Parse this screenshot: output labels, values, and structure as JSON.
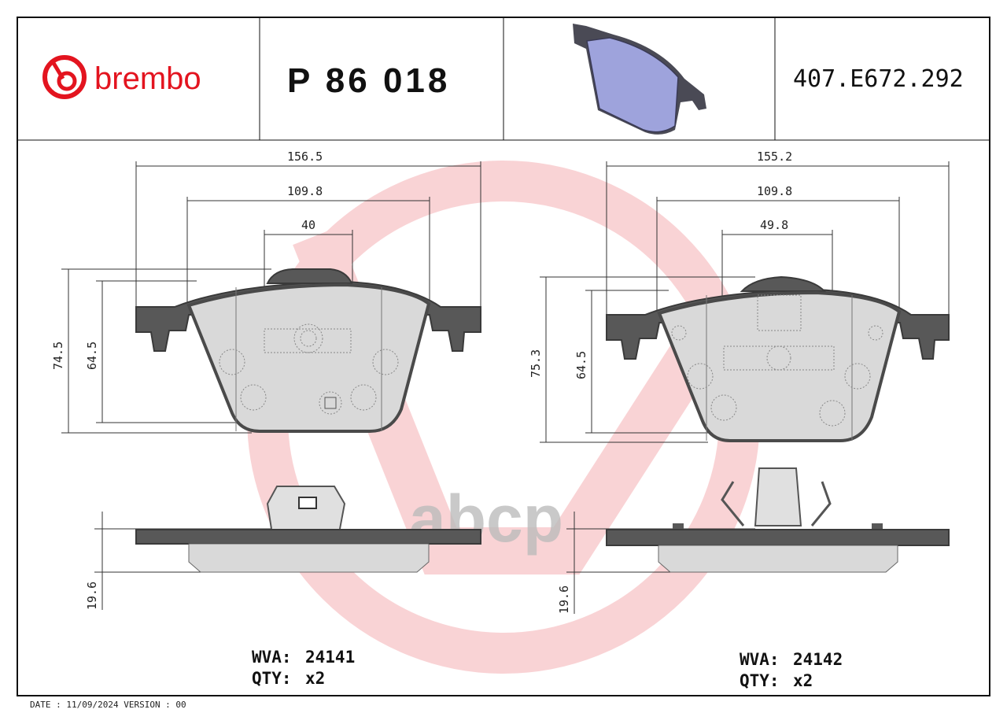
{
  "header": {
    "brand": "brembo",
    "part_number": "P 86 018",
    "reference": "407.E672.292",
    "brand_color": "#e3141f"
  },
  "watermark": {
    "text": "abcp"
  },
  "left_pad": {
    "overall_width": "156.5",
    "mid_width": "109.8",
    "inner_width": "40",
    "overall_height": "74.5",
    "friction_height": "64.5",
    "thickness": "19.6",
    "wva_label": "WVA:",
    "wva": "24141",
    "qty_label": "QTY:",
    "qty": "x2"
  },
  "right_pad": {
    "overall_width": "155.2",
    "mid_width": "109.8",
    "inner_width": "49.8",
    "overall_height": "75.3",
    "friction_height": "64.5",
    "thickness": "19.6",
    "wva_label": "WVA:",
    "wva": "24142",
    "qty_label": "QTY:",
    "qty": "x2"
  },
  "footer": {
    "text": "DATE : 11/09/2024 VERSION : 00"
  }
}
